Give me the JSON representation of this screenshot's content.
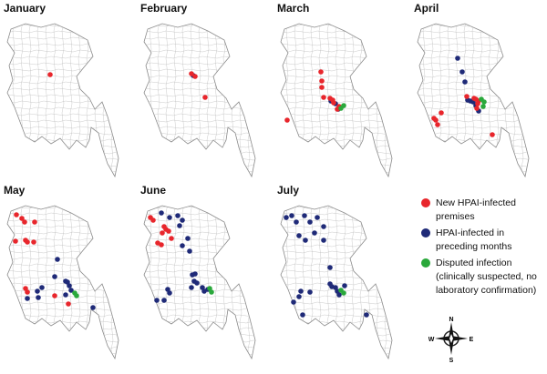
{
  "colors": {
    "new": "#e8262c",
    "preceding": "#1f2a78",
    "disputed": "#2aa83b",
    "border": "#8a8a8a"
  },
  "panels": [
    {
      "title": "January",
      "new": [
        [
          55,
          78
        ]
      ],
      "preceding": [],
      "disputed": []
    },
    {
      "title": "February",
      "new": [
        [
          60,
          77
        ],
        [
          64,
          80
        ],
        [
          75,
          103
        ]
      ],
      "preceding": [
        [
          62,
          79
        ]
      ],
      "disputed": []
    },
    {
      "title": "March",
      "new": [
        [
          52,
          75
        ],
        [
          53,
          85
        ],
        [
          53,
          92
        ],
        [
          55,
          103
        ],
        [
          62,
          104
        ],
        [
          65,
          106
        ],
        [
          66,
          109
        ],
        [
          72,
          113
        ],
        [
          70,
          116
        ],
        [
          72,
          115
        ],
        [
          15,
          128
        ]
      ],
      "preceding": [
        [
          63,
          107
        ],
        [
          68,
          110
        ],
        [
          71,
          116
        ]
      ],
      "disputed": [
        [
          74,
          115
        ],
        [
          77,
          112
        ]
      ]
    },
    {
      "title": "April",
      "new": [
        [
          62,
          102
        ],
        [
          70,
          104
        ],
        [
          72,
          105
        ],
        [
          75,
          107
        ],
        [
          74,
          110
        ],
        [
          73,
          115
        ],
        [
          26,
          126
        ],
        [
          28,
          128
        ],
        [
          30,
          133
        ],
        [
          34,
          120
        ],
        [
          90,
          144
        ]
      ],
      "preceding": [
        [
          52,
          60
        ],
        [
          57,
          75
        ],
        [
          60,
          86
        ],
        [
          63,
          106
        ],
        [
          66,
          107
        ],
        [
          69,
          108
        ],
        [
          72,
          112
        ],
        [
          75,
          118
        ]
      ],
      "disputed": [
        [
          78,
          105
        ],
        [
          81,
          108
        ],
        [
          80,
          113
        ]
      ]
    },
    {
      "title": "May",
      "new": [
        [
          18,
          32
        ],
        [
          24,
          36
        ],
        [
          27,
          40
        ],
        [
          38,
          40
        ],
        [
          17,
          61
        ],
        [
          28,
          60
        ],
        [
          30,
          62
        ],
        [
          37,
          62
        ],
        [
          28,
          113
        ],
        [
          30,
          117
        ],
        [
          60,
          121
        ],
        [
          75,
          130
        ]
      ],
      "preceding": [
        [
          63,
          81
        ],
        [
          60,
          100
        ],
        [
          72,
          105
        ],
        [
          74,
          106
        ],
        [
          76,
          110
        ],
        [
          72,
          120
        ],
        [
          78,
          115
        ],
        [
          41,
          116
        ],
        [
          42,
          123
        ],
        [
          30,
          124
        ],
        [
          46,
          112
        ],
        [
          102,
          134
        ]
      ],
      "disputed": [
        [
          82,
          118
        ],
        [
          84,
          121
        ]
      ]
    },
    {
      "title": "June",
      "new": [
        [
          15,
          35
        ],
        [
          18,
          38
        ],
        [
          30,
          45
        ],
        [
          32,
          48
        ],
        [
          35,
          50
        ],
        [
          28,
          52
        ],
        [
          23,
          63
        ],
        [
          27,
          65
        ],
        [
          38,
          58
        ]
      ],
      "preceding": [
        [
          27,
          30
        ],
        [
          36,
          35
        ],
        [
          45,
          33
        ],
        [
          47,
          44
        ],
        [
          50,
          38
        ],
        [
          56,
          58
        ],
        [
          58,
          72
        ],
        [
          50,
          66
        ],
        [
          61,
          98
        ],
        [
          64,
          97
        ],
        [
          63,
          105
        ],
        [
          66,
          107
        ],
        [
          60,
          112
        ],
        [
          72,
          112
        ],
        [
          74,
          116
        ],
        [
          78,
          114
        ],
        [
          34,
          114
        ],
        [
          36,
          118
        ],
        [
          22,
          126
        ],
        [
          30,
          126
        ]
      ],
      "disputed": [
        [
          80,
          113
        ],
        [
          82,
          117
        ]
      ]
    },
    {
      "title": "July",
      "new": [],
      "preceding": [
        [
          14,
          35
        ],
        [
          20,
          33
        ],
        [
          25,
          40
        ],
        [
          34,
          33
        ],
        [
          40,
          40
        ],
        [
          45,
          52
        ],
        [
          48,
          35
        ],
        [
          55,
          45
        ],
        [
          55,
          60
        ],
        [
          28,
          55
        ],
        [
          35,
          60
        ],
        [
          62,
          90
        ],
        [
          62,
          108
        ],
        [
          64,
          111
        ],
        [
          68,
          112
        ],
        [
          70,
          116
        ],
        [
          72,
          120
        ],
        [
          78,
          110
        ],
        [
          30,
          116
        ],
        [
          28,
          122
        ],
        [
          40,
          117
        ],
        [
          22,
          128
        ],
        [
          102,
          142
        ],
        [
          32,
          142
        ]
      ],
      "disputed": [
        [
          74,
          115
        ],
        [
          77,
          118
        ]
      ]
    }
  ],
  "legend": [
    {
      "key": "new",
      "label": "New HPAI-infected premises"
    },
    {
      "key": "preceding",
      "label": "HPAI-infected in preceding months"
    },
    {
      "key": "disputed",
      "label": "Disputed infection (clinically suspected, no laboratory confirmation)"
    }
  ],
  "compass": {
    "n": "N",
    "s": "S",
    "e": "E",
    "w": "W"
  }
}
